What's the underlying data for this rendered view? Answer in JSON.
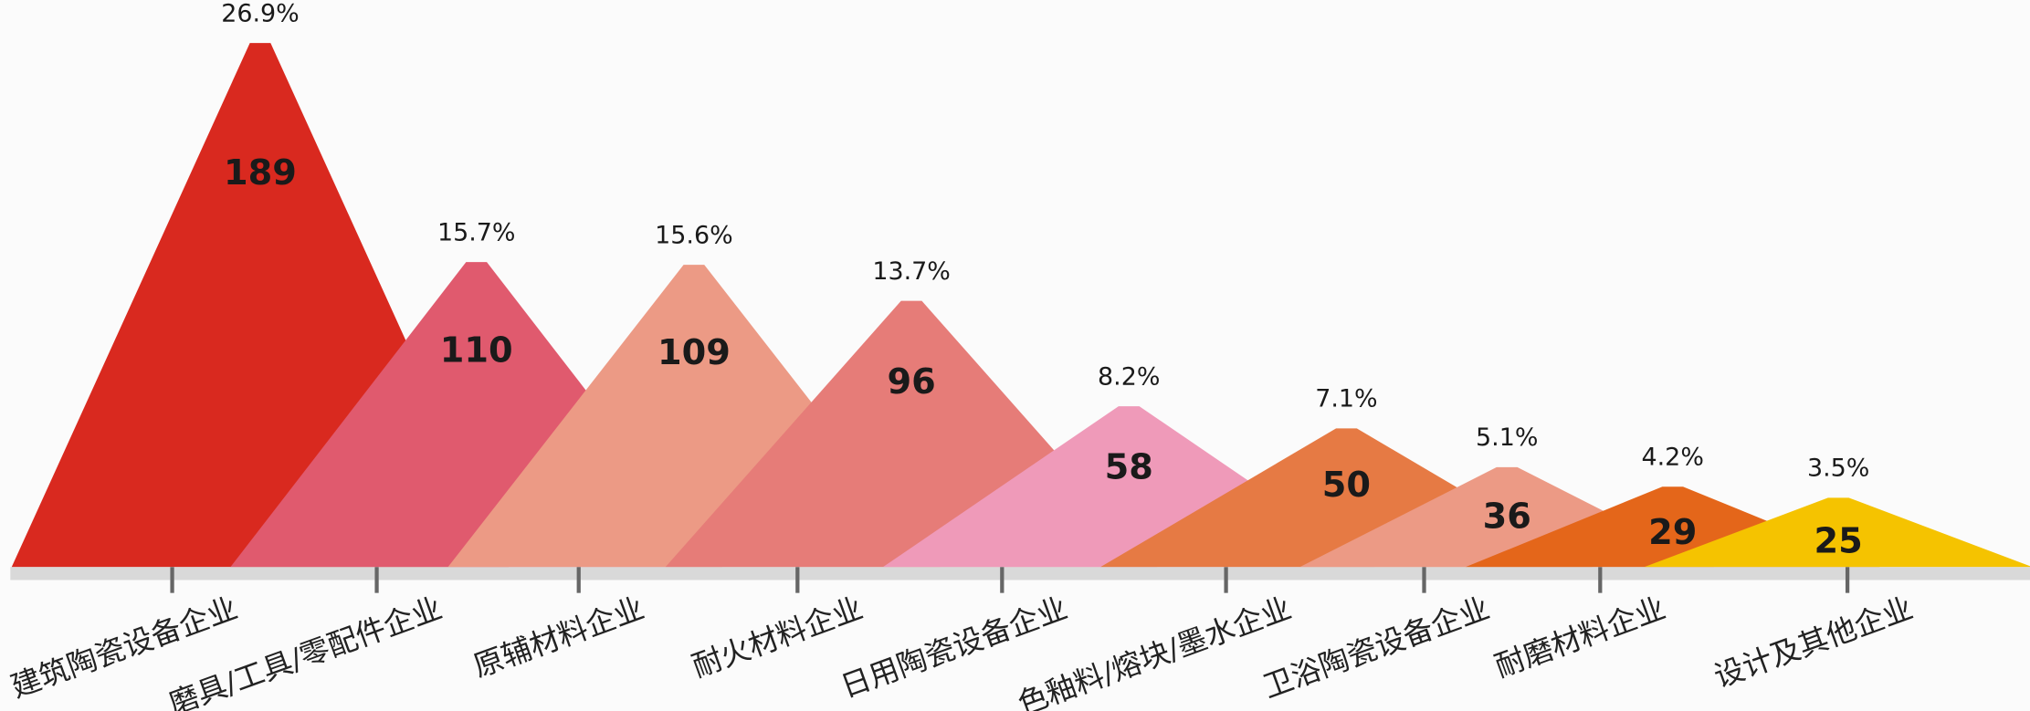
{
  "chart_data": {
    "type": "triangle-bar",
    "categories": [
      "建筑陶瓷设备企业",
      "磨具/工具/零配件企业",
      "原辅材料企业",
      "耐火材料企业",
      "日用陶瓷设备企业",
      "色釉料/熔块/墨水企业",
      "卫浴陶瓷设备企业",
      "耐磨材料企业",
      "设计及其他企业"
    ],
    "values": [
      189,
      110,
      109,
      96,
      58,
      50,
      36,
      29,
      25
    ],
    "shares": [
      26.9,
      15.7,
      15.6,
      13.7,
      8.2,
      7.1,
      5.1,
      4.2,
      3.5
    ],
    "share_labels": [
      "26.9%",
      "15.7%",
      "15.6%",
      "13.7%",
      "8.2%",
      "7.1%",
      "5.1%",
      "4.2%",
      "3.5%"
    ],
    "colors": [
      "#d9291f",
      "#e05a6e",
      "#ec9a85",
      "#e67c78",
      "#ef9ab9",
      "#e67a44",
      "#ec9a85",
      "#e4661a",
      "#f5c300"
    ]
  }
}
